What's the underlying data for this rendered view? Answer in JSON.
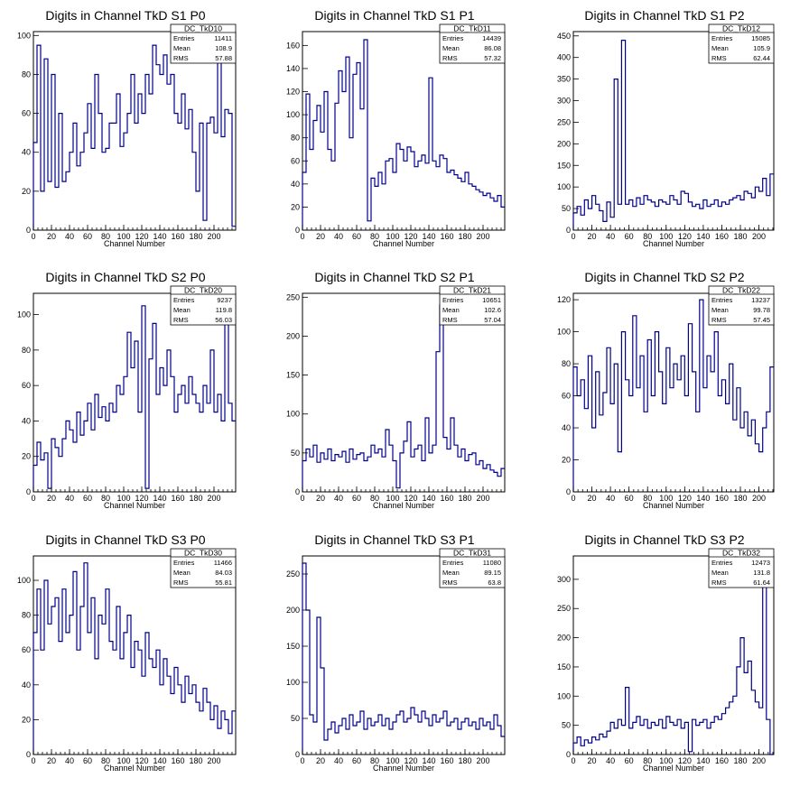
{
  "page": {
    "background": "#ffffff",
    "line_color": "#00008b"
  },
  "chart_data": [
    {
      "type": "line",
      "style": "step",
      "title": "Digits in Channel TkD S1 P0",
      "xlabel": "Channel Number",
      "xlim": [
        0,
        224
      ],
      "ylim": [
        0,
        102
      ],
      "xticks": [
        0,
        20,
        40,
        60,
        80,
        100,
        120,
        140,
        160,
        180,
        200
      ],
      "yticks": [
        0,
        20,
        40,
        60,
        80,
        100
      ],
      "stats": {
        "name": "DC_TkD10",
        "entries": "11411",
        "mean": "108.9",
        "rms": "57.88"
      },
      "x": [
        0,
        4,
        8,
        12,
        16,
        20,
        24,
        28,
        32,
        36,
        40,
        44,
        48,
        52,
        56,
        60,
        64,
        68,
        72,
        76,
        80,
        84,
        88,
        92,
        96,
        100,
        104,
        108,
        112,
        116,
        120,
        124,
        128,
        132,
        136,
        140,
        144,
        148,
        152,
        156,
        160,
        164,
        168,
        172,
        176,
        180,
        184,
        188,
        192,
        196,
        200,
        204,
        208,
        212,
        216,
        220
      ],
      "values": [
        45,
        95,
        20,
        88,
        25,
        80,
        22,
        60,
        25,
        30,
        40,
        55,
        33,
        40,
        50,
        65,
        42,
        80,
        60,
        40,
        42,
        55,
        55,
        70,
        43,
        50,
        60,
        80,
        55,
        70,
        60,
        80,
        70,
        95,
        85,
        80,
        90,
        75,
        80,
        60,
        55,
        70,
        52,
        62,
        40,
        20,
        55,
        5,
        55,
        58,
        50,
        100,
        48,
        62,
        60,
        2
      ]
    },
    {
      "type": "line",
      "style": "step",
      "title": "Digits in Channel TkD S1 P1",
      "xlabel": "Channel Number",
      "xlim": [
        0,
        224
      ],
      "ylim": [
        0,
        172
      ],
      "xticks": [
        0,
        20,
        40,
        60,
        80,
        100,
        120,
        140,
        160,
        180,
        200
      ],
      "yticks": [
        0,
        20,
        40,
        60,
        80,
        100,
        120,
        140,
        160
      ],
      "stats": {
        "name": "DC_TkD11",
        "entries": "14439",
        "mean": "86.08",
        "rms": "57.32"
      },
      "x": [
        0,
        4,
        8,
        12,
        16,
        20,
        24,
        28,
        32,
        36,
        40,
        44,
        48,
        52,
        56,
        60,
        64,
        68,
        72,
        76,
        80,
        84,
        88,
        92,
        96,
        100,
        104,
        108,
        112,
        116,
        120,
        124,
        128,
        132,
        136,
        140,
        144,
        148,
        152,
        156,
        160,
        164,
        168,
        172,
        176,
        180,
        184,
        188,
        192,
        196,
        200,
        204,
        208,
        212,
        216,
        220
      ],
      "values": [
        50,
        118,
        70,
        95,
        108,
        85,
        120,
        70,
        60,
        110,
        138,
        120,
        150,
        80,
        135,
        145,
        105,
        165,
        8,
        45,
        38,
        50,
        40,
        60,
        62,
        50,
        75,
        70,
        60,
        72,
        68,
        55,
        60,
        65,
        58,
        132,
        60,
        55,
        65,
        62,
        50,
        52,
        48,
        45,
        42,
        50,
        40,
        38,
        35,
        33,
        30,
        32,
        28,
        25,
        30,
        20
      ]
    },
    {
      "type": "line",
      "style": "step",
      "title": "Digits in Channel TkD S1 P2",
      "xlabel": "Channel Number",
      "xlim": [
        0,
        216
      ],
      "ylim": [
        0,
        460
      ],
      "xticks": [
        0,
        20,
        40,
        60,
        80,
        100,
        120,
        140,
        160,
        180,
        200
      ],
      "yticks": [
        0,
        50,
        100,
        150,
        200,
        250,
        300,
        350,
        400,
        450
      ],
      "stats": {
        "name": "DC_TkD12",
        "entries": "15085",
        "mean": "105.9",
        "rms": "62.44"
      },
      "x": [
        0,
        4,
        8,
        12,
        16,
        20,
        24,
        28,
        32,
        36,
        40,
        44,
        48,
        52,
        56,
        60,
        64,
        68,
        72,
        76,
        80,
        84,
        88,
        92,
        96,
        100,
        104,
        108,
        112,
        116,
        120,
        124,
        128,
        132,
        136,
        140,
        144,
        148,
        152,
        156,
        160,
        164,
        168,
        172,
        176,
        180,
        184,
        188,
        192,
        196,
        200,
        204,
        208,
        212
      ],
      "values": [
        40,
        55,
        35,
        70,
        50,
        80,
        60,
        45,
        20,
        65,
        30,
        350,
        60,
        440,
        60,
        70,
        55,
        75,
        60,
        80,
        70,
        65,
        55,
        70,
        65,
        60,
        80,
        70,
        60,
        90,
        85,
        65,
        55,
        60,
        50,
        70,
        55,
        60,
        70,
        55,
        65,
        60,
        70,
        75,
        80,
        70,
        90,
        85,
        75,
        100,
        90,
        120,
        80,
        130
      ]
    },
    {
      "type": "line",
      "style": "step",
      "title": "Digits in Channel TkD S2 P0",
      "xlabel": "Channel Number",
      "xlim": [
        0,
        224
      ],
      "ylim": [
        0,
        112
      ],
      "xticks": [
        0,
        20,
        40,
        60,
        80,
        100,
        120,
        140,
        160,
        180,
        200
      ],
      "yticks": [
        0,
        20,
        40,
        60,
        80,
        100
      ],
      "stats": {
        "name": "DC_TkD20",
        "entries": "9237",
        "mean": "119.8",
        "rms": "56.03"
      },
      "x": [
        0,
        4,
        8,
        12,
        16,
        20,
        24,
        28,
        32,
        36,
        40,
        44,
        48,
        52,
        56,
        60,
        64,
        68,
        72,
        76,
        80,
        84,
        88,
        92,
        96,
        100,
        104,
        108,
        112,
        116,
        120,
        124,
        128,
        132,
        136,
        140,
        144,
        148,
        152,
        156,
        160,
        164,
        168,
        172,
        176,
        180,
        184,
        188,
        192,
        196,
        200,
        204,
        208,
        212,
        216,
        220
      ],
      "values": [
        15,
        28,
        18,
        22,
        2,
        30,
        25,
        20,
        30,
        40,
        35,
        28,
        45,
        32,
        40,
        50,
        35,
        55,
        42,
        48,
        40,
        50,
        45,
        60,
        55,
        65,
        90,
        70,
        85,
        45,
        105,
        2,
        75,
        95,
        55,
        70,
        60,
        80,
        65,
        45,
        55,
        60,
        50,
        65,
        55,
        50,
        45,
        60,
        50,
        80,
        45,
        55,
        40,
        95,
        50,
        40
      ]
    },
    {
      "type": "line",
      "style": "step",
      "title": "Digits in Channel TkD S2 P1",
      "xlabel": "Channel Number",
      "xlim": [
        0,
        224
      ],
      "ylim": [
        0,
        255
      ],
      "xticks": [
        0,
        20,
        40,
        60,
        80,
        100,
        120,
        140,
        160,
        180,
        200
      ],
      "yticks": [
        0,
        50,
        100,
        150,
        200,
        250
      ],
      "stats": {
        "name": "DC_TkD21",
        "entries": "10651",
        "mean": "102.6",
        "rms": "57.04"
      },
      "x": [
        0,
        4,
        8,
        12,
        16,
        20,
        24,
        28,
        32,
        36,
        40,
        44,
        48,
        52,
        56,
        60,
        64,
        68,
        72,
        76,
        80,
        84,
        88,
        92,
        96,
        100,
        104,
        108,
        112,
        116,
        120,
        124,
        128,
        132,
        136,
        140,
        144,
        148,
        152,
        156,
        160,
        164,
        168,
        172,
        176,
        180,
        184,
        188,
        192,
        196,
        200,
        204,
        208,
        212,
        216,
        220
      ],
      "values": [
        40,
        55,
        45,
        60,
        38,
        50,
        42,
        55,
        40,
        48,
        45,
        52,
        38,
        55,
        42,
        48,
        50,
        40,
        45,
        60,
        50,
        55,
        45,
        80,
        60,
        40,
        5,
        50,
        65,
        90,
        45,
        55,
        60,
        40,
        95,
        50,
        60,
        180,
        240,
        70,
        55,
        95,
        60,
        45,
        55,
        40,
        48,
        50,
        35,
        40,
        30,
        35,
        28,
        25,
        20,
        30
      ]
    },
    {
      "type": "line",
      "style": "step",
      "title": "Digits in Channel TkD S2 P2",
      "xlabel": "Channel Number",
      "xlim": [
        0,
        216
      ],
      "ylim": [
        0,
        124
      ],
      "xticks": [
        0,
        20,
        40,
        60,
        80,
        100,
        120,
        140,
        160,
        180,
        200
      ],
      "yticks": [
        0,
        20,
        40,
        60,
        80,
        100,
        120
      ],
      "stats": {
        "name": "DC_TkD22",
        "entries": "13237",
        "mean": "99.78",
        "rms": "57.45"
      },
      "x": [
        0,
        4,
        8,
        12,
        16,
        20,
        24,
        28,
        32,
        36,
        40,
        44,
        48,
        52,
        56,
        60,
        64,
        68,
        72,
        76,
        80,
        84,
        88,
        92,
        96,
        100,
        104,
        108,
        112,
        116,
        120,
        124,
        128,
        132,
        136,
        140,
        144,
        148,
        152,
        156,
        160,
        164,
        168,
        172,
        176,
        180,
        184,
        188,
        192,
        196,
        200,
        204,
        208,
        212
      ],
      "values": [
        78,
        60,
        70,
        52,
        85,
        40,
        75,
        48,
        62,
        90,
        55,
        80,
        25,
        100,
        70,
        60,
        110,
        65,
        85,
        50,
        95,
        60,
        100,
        75,
        55,
        90,
        65,
        80,
        70,
        85,
        60,
        105,
        75,
        50,
        120,
        65,
        85,
        75,
        100,
        60,
        70,
        55,
        80,
        45,
        65,
        40,
        50,
        35,
        45,
        30,
        25,
        40,
        50,
        78
      ]
    },
    {
      "type": "line",
      "style": "step",
      "title": "Digits in Channel TkD S3 P0",
      "xlabel": "Channel Number",
      "xlim": [
        0,
        224
      ],
      "ylim": [
        0,
        114
      ],
      "xticks": [
        0,
        20,
        40,
        60,
        80,
        100,
        120,
        140,
        160,
        180,
        200
      ],
      "yticks": [
        0,
        20,
        40,
        60,
        80,
        100
      ],
      "stats": {
        "name": "DC_TkD30",
        "entries": "11466",
        "mean": "84.03",
        "rms": "55.81"
      },
      "x": [
        0,
        4,
        8,
        12,
        16,
        20,
        24,
        28,
        32,
        36,
        40,
        44,
        48,
        52,
        56,
        60,
        64,
        68,
        72,
        76,
        80,
        84,
        88,
        92,
        96,
        100,
        104,
        108,
        112,
        116,
        120,
        124,
        128,
        132,
        136,
        140,
        144,
        148,
        152,
        156,
        160,
        164,
        168,
        172,
        176,
        180,
        184,
        188,
        192,
        196,
        200,
        204,
        208,
        212,
        216,
        220
      ],
      "values": [
        70,
        95,
        60,
        100,
        75,
        85,
        90,
        65,
        95,
        70,
        80,
        105,
        60,
        85,
        110,
        70,
        90,
        55,
        80,
        75,
        95,
        65,
        60,
        85,
        55,
        70,
        80,
        50,
        65,
        60,
        45,
        70,
        55,
        50,
        60,
        40,
        55,
        45,
        35,
        50,
        40,
        30,
        45,
        35,
        40,
        30,
        25,
        38,
        30,
        20,
        28,
        15,
        25,
        20,
        12,
        25
      ]
    },
    {
      "type": "line",
      "style": "step",
      "title": "Digits in Channel TkD S3 P1",
      "xlabel": "Channel Number",
      "xlim": [
        0,
        224
      ],
      "ylim": [
        0,
        275
      ],
      "xticks": [
        0,
        20,
        40,
        60,
        80,
        100,
        120,
        140,
        160,
        180,
        200
      ],
      "yticks": [
        0,
        50,
        100,
        150,
        200,
        250
      ],
      "stats": {
        "name": "DC_TkD31",
        "entries": "11080",
        "mean": "89.15",
        "rms": "63.8"
      },
      "x": [
        0,
        4,
        8,
        12,
        16,
        20,
        24,
        28,
        32,
        36,
        40,
        44,
        48,
        52,
        56,
        60,
        64,
        68,
        72,
        76,
        80,
        84,
        88,
        92,
        96,
        100,
        104,
        108,
        112,
        116,
        120,
        124,
        128,
        132,
        136,
        140,
        144,
        148,
        152,
        156,
        160,
        164,
        168,
        172,
        176,
        180,
        184,
        188,
        192,
        196,
        200,
        204,
        208,
        212,
        216,
        220
      ],
      "values": [
        265,
        200,
        55,
        45,
        190,
        120,
        20,
        35,
        45,
        30,
        40,
        50,
        35,
        55,
        40,
        45,
        60,
        35,
        50,
        40,
        45,
        55,
        40,
        50,
        35,
        45,
        55,
        60,
        45,
        50,
        65,
        55,
        45,
        60,
        50,
        40,
        55,
        45,
        50,
        60,
        40,
        45,
        50,
        35,
        45,
        50,
        40,
        45,
        35,
        50,
        40,
        45,
        35,
        55,
        40,
        25
      ]
    },
    {
      "type": "line",
      "style": "step",
      "title": "Digits in Channel TkD S3 P2",
      "xlabel": "Channel Number",
      "xlim": [
        0,
        216
      ],
      "ylim": [
        0,
        340
      ],
      "xticks": [
        0,
        20,
        40,
        60,
        80,
        100,
        120,
        140,
        160,
        180,
        200
      ],
      "yticks": [
        0,
        50,
        100,
        150,
        200,
        250,
        300
      ],
      "stats": {
        "name": "DC_TkD32",
        "entries": "12473",
        "mean": "131.8",
        "rms": "61.64"
      },
      "x": [
        0,
        4,
        8,
        12,
        16,
        20,
        24,
        28,
        32,
        36,
        40,
        44,
        48,
        52,
        56,
        60,
        64,
        68,
        72,
        76,
        80,
        84,
        88,
        92,
        96,
        100,
        104,
        108,
        112,
        116,
        120,
        124,
        128,
        132,
        136,
        140,
        144,
        148,
        152,
        156,
        160,
        164,
        168,
        172,
        176,
        180,
        184,
        188,
        192,
        196,
        200,
        204,
        208,
        212
      ],
      "values": [
        20,
        30,
        15,
        25,
        20,
        30,
        25,
        35,
        30,
        40,
        55,
        45,
        60,
        50,
        115,
        45,
        55,
        65,
        50,
        60,
        45,
        55,
        50,
        60,
        45,
        65,
        55,
        50,
        60,
        45,
        55,
        5,
        60,
        50,
        55,
        60,
        45,
        55,
        65,
        60,
        70,
        80,
        90,
        100,
        150,
        200,
        140,
        160,
        110,
        90,
        80,
        290,
        60,
        0
      ]
    }
  ]
}
